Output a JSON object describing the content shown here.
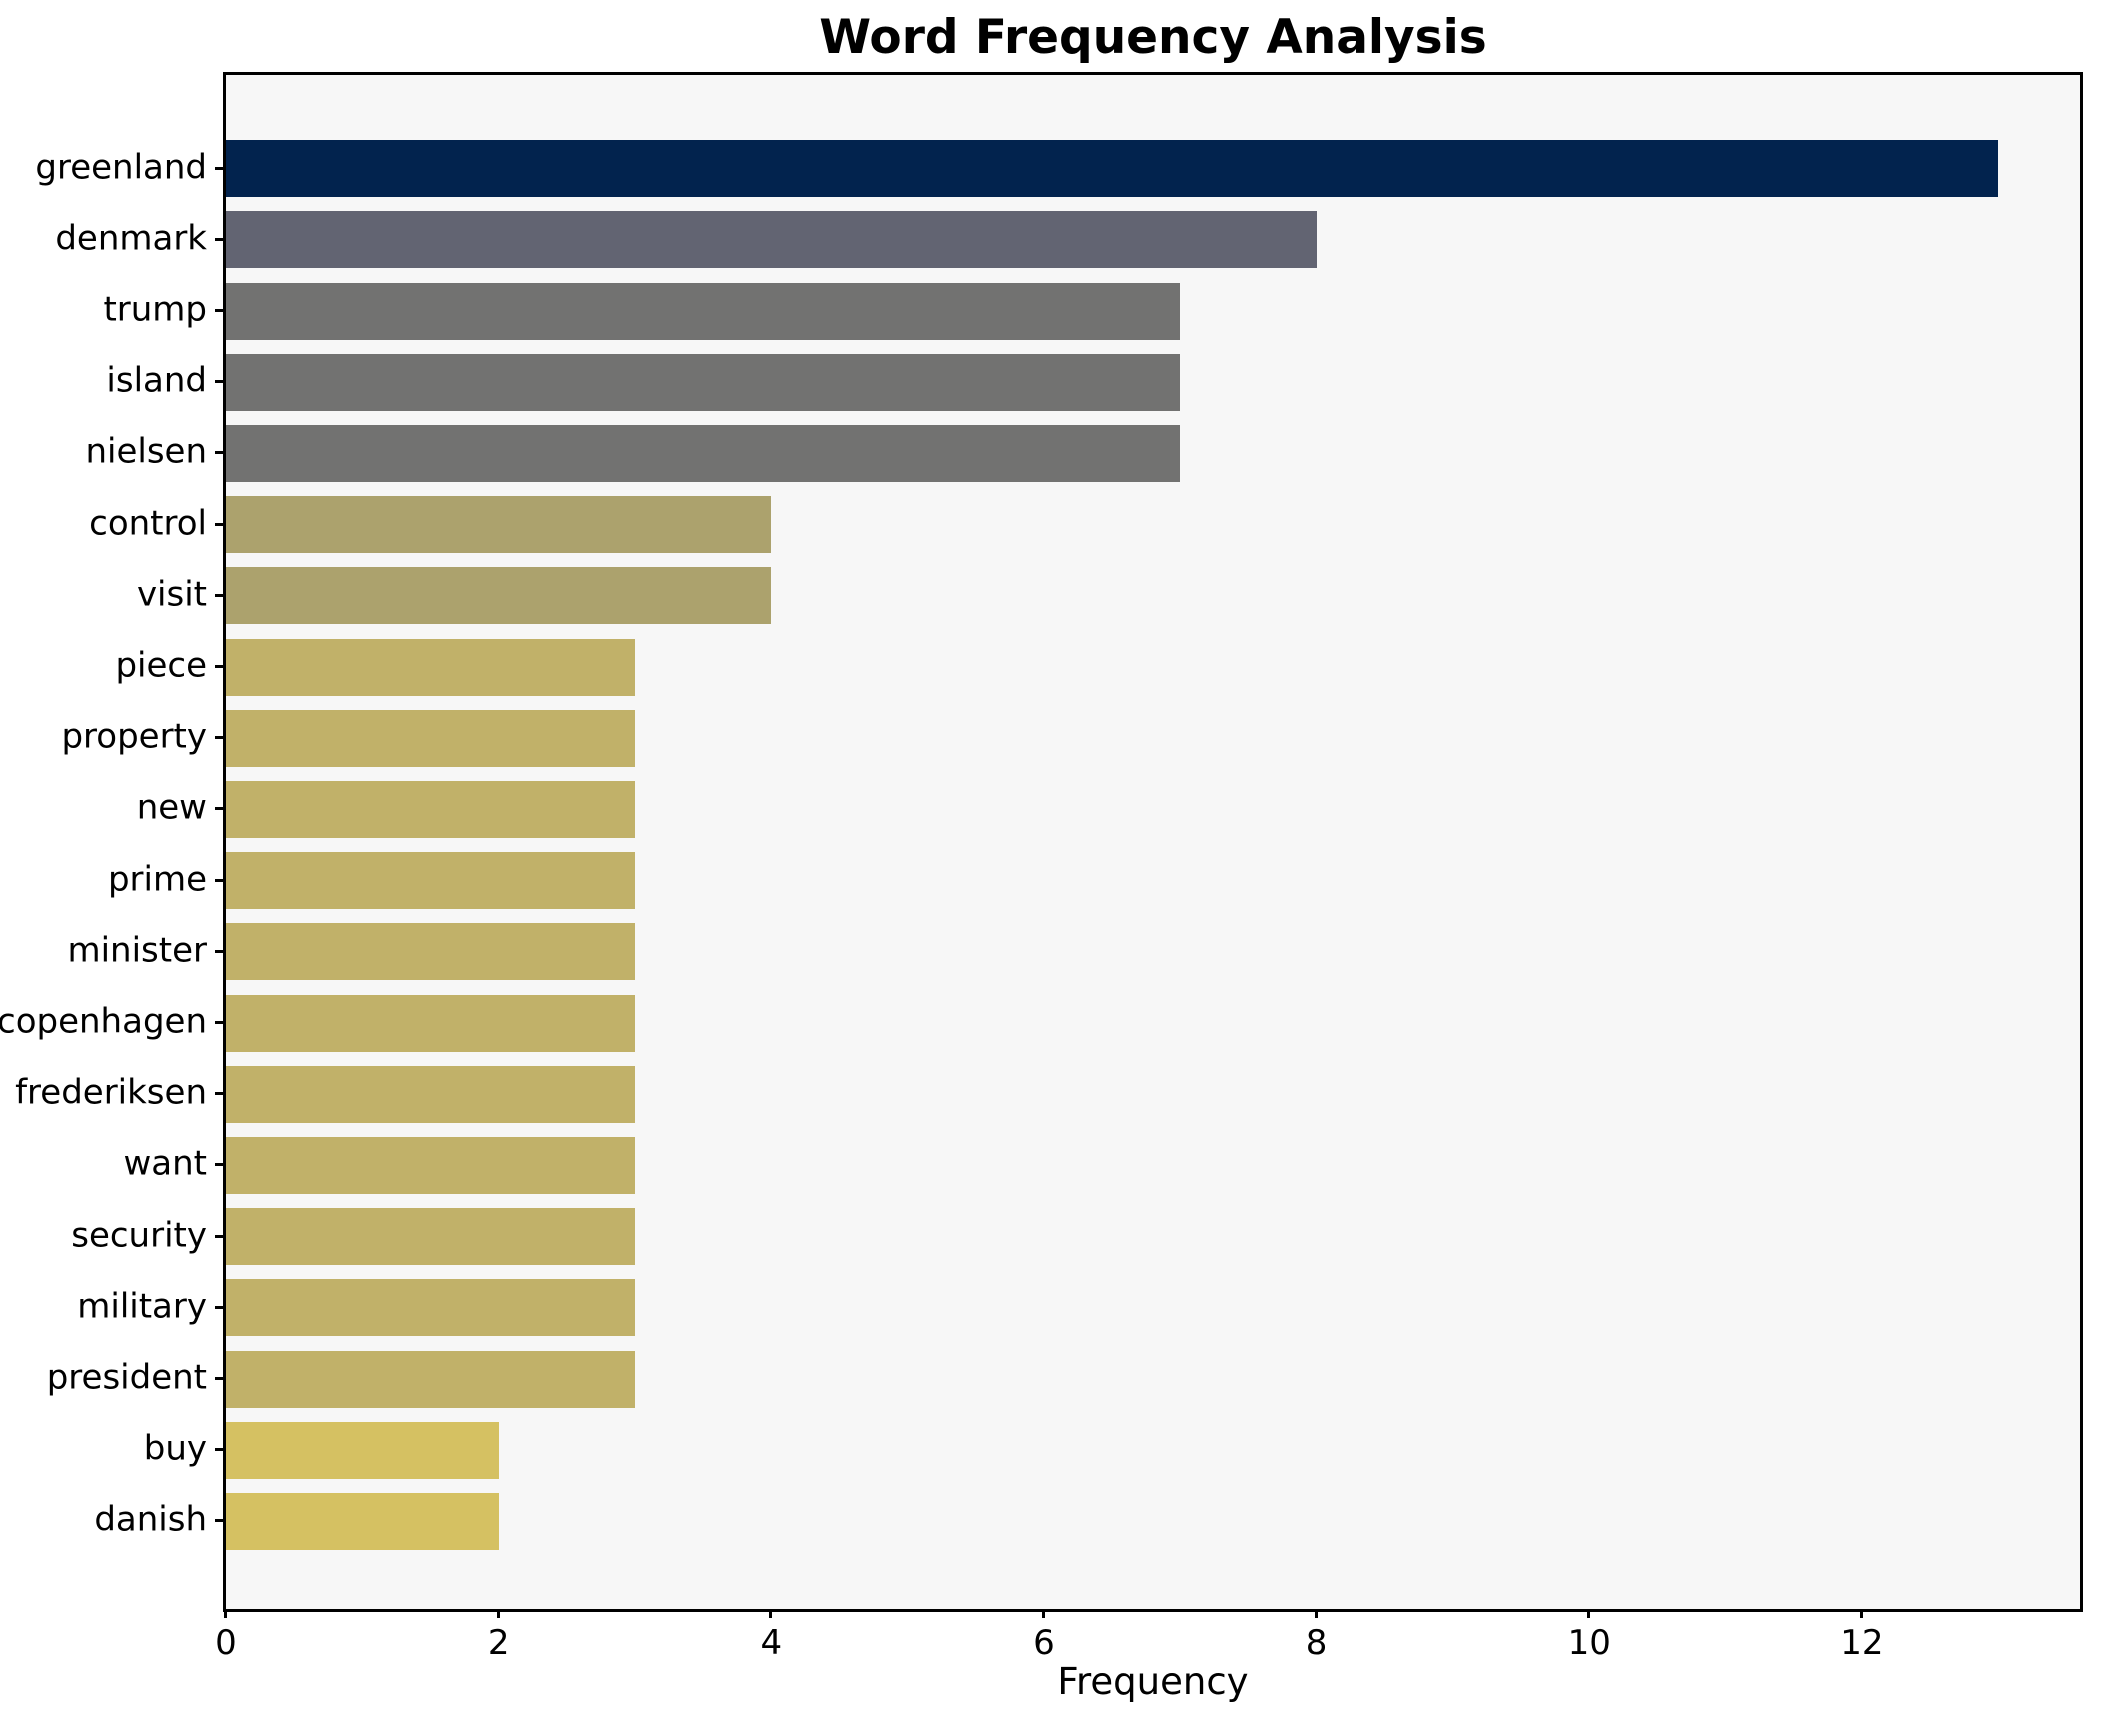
{
  "chart_data": {
    "type": "bar",
    "orientation": "horizontal",
    "title": "Word Frequency Analysis",
    "xlabel": "Frequency",
    "ylabel": "",
    "categories": [
      "greenland",
      "denmark",
      "trump",
      "island",
      "nielsen",
      "control",
      "visit",
      "piece",
      "property",
      "new",
      "prime",
      "minister",
      "copenhagen",
      "frederiksen",
      "want",
      "security",
      "military",
      "president",
      "buy",
      "danish"
    ],
    "values": [
      13,
      8,
      7,
      7,
      7,
      4,
      4,
      3,
      3,
      3,
      3,
      3,
      3,
      3,
      3,
      3,
      3,
      3,
      2,
      2
    ],
    "bar_colors": [
      "#02234e",
      "#626472",
      "#727271",
      "#727271",
      "#727271",
      "#aca26d",
      "#aca26d",
      "#c1b169",
      "#c1b169",
      "#c1b169",
      "#c1b169",
      "#c1b169",
      "#c1b169",
      "#c1b169",
      "#c1b169",
      "#c1b169",
      "#c1b169",
      "#c1b169",
      "#d5c162",
      "#d5c162"
    ],
    "xlim": [
      0,
      13.6
    ],
    "xticks": [
      0,
      2,
      4,
      6,
      8,
      10,
      12
    ],
    "grid": false,
    "legend": null,
    "colormap": "cividis-by-value",
    "plot_bg": "#f7f7f7",
    "figure_bg": "#ffffff",
    "spine_color": "#000000"
  }
}
